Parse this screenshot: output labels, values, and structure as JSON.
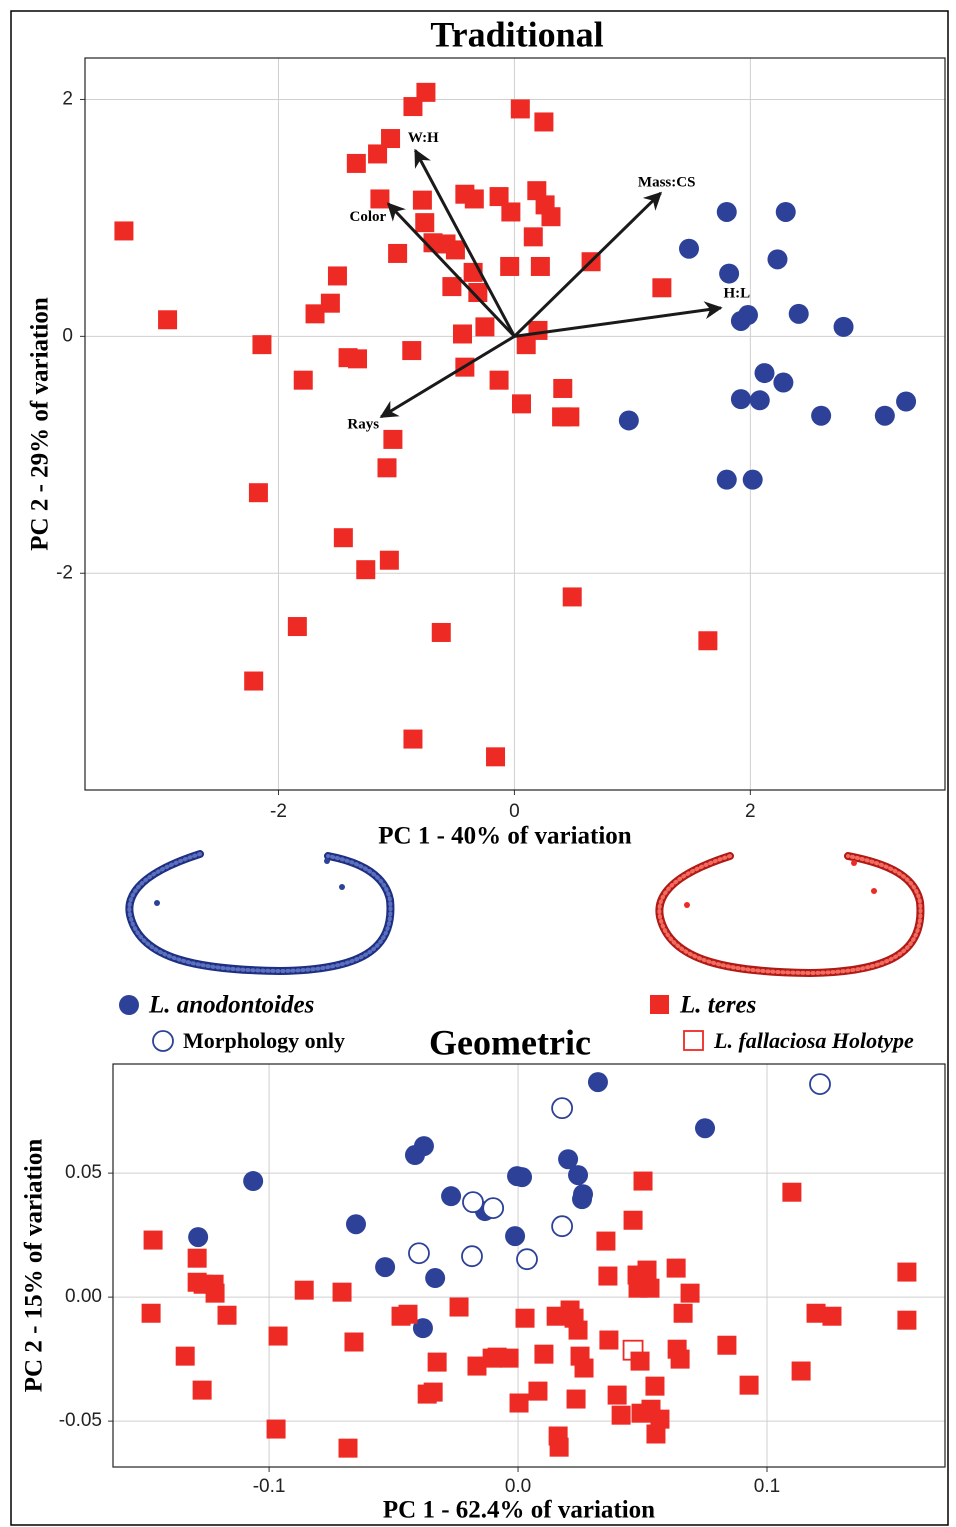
{
  "chart_data": [
    {
      "type": "scatter",
      "title": "Traditional",
      "x_label": "PC 1 - 40% of variation",
      "y_label": "PC 2 - 29% of variation",
      "xlim": [
        -3.64,
        3.65
      ],
      "ylim": [
        -3.83,
        2.35
      ],
      "xticks": [
        -2,
        0,
        2
      ],
      "yticks": [
        -2,
        0,
        2
      ],
      "grid": true,
      "series": [
        {
          "color": "#2d4199",
          "marker": "circle",
          "filled": true,
          "x": [
            0.97,
            1.48,
            1.8,
            1.82,
            1.92,
            1.98,
            1.8,
            2.02,
            1.92,
            2.08,
            2.12,
            2.23,
            2.28,
            2.3,
            2.41,
            2.6,
            2.79,
            3.14,
            3.32
          ],
          "y": [
            -0.71,
            0.74,
            1.05,
            0.53,
            0.13,
            0.18,
            -1.21,
            -1.21,
            -0.53,
            -0.54,
            -0.31,
            0.65,
            -0.39,
            1.05,
            0.19,
            -0.67,
            0.08,
            -0.67,
            -0.55
          ]
        },
        {
          "color": "#ee2a24",
          "marker": "square",
          "filled": true,
          "x": [
            -3.31,
            -2.94,
            -2.14,
            -2.17,
            -2.21,
            -1.84,
            -1.79,
            -1.69,
            -1.56,
            -1.5,
            -1.45,
            -1.41,
            -1.33,
            -1.26,
            -1.06,
            -1.08,
            -1.03,
            -1.34,
            -1.16,
            -1.05,
            -0.86,
            -0.75,
            -1.14,
            -0.99,
            -0.78,
            -0.76,
            -0.69,
            -0.87,
            -0.86,
            -0.62,
            -0.58,
            -0.53,
            -0.5,
            -0.44,
            -0.42,
            -0.42,
            -0.34,
            -0.35,
            -0.31,
            -0.25,
            -0.16,
            -0.13,
            -0.13,
            -0.03,
            -0.04,
            0.05,
            0.1,
            0.06,
            0.16,
            0.19,
            0.22,
            0.25,
            0.26,
            0.31,
            0.2,
            0.41,
            0.4,
            0.47,
            0.49,
            0.65,
            1.25,
            1.64
          ],
          "y": [
            0.89,
            0.14,
            -0.07,
            -1.32,
            -2.91,
            -2.45,
            -0.37,
            0.19,
            0.28,
            0.51,
            -1.7,
            -0.18,
            -0.19,
            -1.97,
            -1.89,
            -1.11,
            -0.87,
            1.46,
            1.54,
            1.67,
            1.94,
            2.06,
            1.16,
            0.7,
            1.15,
            0.96,
            0.79,
            -0.12,
            -3.4,
            -2.5,
            0.78,
            0.42,
            0.73,
            0.02,
            -0.26,
            1.2,
            1.16,
            0.54,
            0.37,
            0.08,
            -3.55,
            -0.37,
            1.18,
            1.05,
            0.59,
            1.92,
            -0.07,
            -0.57,
            0.84,
            1.23,
            0.59,
            1.81,
            1.11,
            1.01,
            0.05,
            -0.44,
            -0.68,
            -0.68,
            -2.2,
            0.63,
            0.41,
            -2.57
          ]
        }
      ],
      "vectors": [
        {
          "label": "W:H",
          "x": -0.84,
          "y": 1.57
        },
        {
          "label": "Color",
          "x": -1.07,
          "y": 1.12
        },
        {
          "label": "Mass:CS",
          "x": 1.24,
          "y": 1.21
        },
        {
          "label": "H:L",
          "x": 1.75,
          "y": 0.24
        },
        {
          "label": "Rays",
          "x": -1.13,
          "y": -0.68
        }
      ]
    },
    {
      "type": "scatter",
      "title": "Geometric",
      "x_label": "PC 1 - 62.4% of variation",
      "y_label": "PC 2 - 15% of variation",
      "xlim": [
        -0.1627,
        0.1715
      ],
      "ylim": [
        -0.0685,
        0.094
      ],
      "xticks": [
        -0.1,
        {
          "value": 0,
          "label": "0.0"
        },
        0.1
      ],
      "yticks": [
        -0.05,
        {
          "value": 0,
          "label": "0.00"
        },
        0.05
      ],
      "grid": true,
      "series": [
        {
          "name": "L. anodontoides",
          "color": "#2d4199",
          "marker": "circle",
          "filled": true,
          "x": [
            0.0321,
            0.0751,
            -0.0378,
            -0.0414,
            -0.1064,
            0.0201,
            -0.0004,
            0.0016,
            0.0241,
            -0.0269,
            0.0261,
            0.0257,
            -0.0133,
            -0.0651,
            -0.1285,
            -0.0012,
            -0.0534,
            -0.0333,
            -0.0382
          ],
          "y": [
            0.0867,
            0.0681,
            0.0609,
            0.0573,
            0.0468,
            0.0556,
            0.0488,
            0.0484,
            0.0492,
            0.0407,
            0.0415,
            0.0395,
            0.0347,
            0.0294,
            0.0242,
            0.0246,
            0.0121,
            0.0077,
            -0.0125
          ]
        },
        {
          "name": "Morphology only",
          "color": "#2d4199",
          "marker": "circle",
          "filled": false,
          "x": [
            0.1213,
            0.0177,
            -0.0181,
            -0.01,
            0.0177,
            -0.0398,
            -0.0185,
            0.0036
          ],
          "y": [
            0.0859,
            0.0762,
            0.0383,
            0.0359,
            0.0286,
            0.0177,
            0.0165,
            0.0153
          ]
        },
        {
          "name": "L. teres",
          "color": "#ee2a24",
          "marker": "square",
          "filled": true,
          "x": [
            -0.1466,
            -0.1474,
            -0.1289,
            -0.1289,
            -0.1265,
            -0.1221,
            -0.1217,
            -0.1169,
            -0.1337,
            -0.1269,
            -0.0964,
            -0.0972,
            -0.0859,
            -0.0707,
            -0.0659,
            -0.0683,
            -0.047,
            -0.0442,
            -0.0325,
            -0.0365,
            -0.0341,
            -0.0237,
            -0.0165,
            -0.0104,
            -0.0084,
            -0.0036,
            0.0004,
            0.0028,
            0.008,
            0.0104,
            0.0153,
            0.0209,
            0.0225,
            0.0161,
            0.0165,
            0.0233,
            0.0241,
            0.0249,
            0.0265,
            0.0365,
            0.0353,
            0.0361,
            0.0398,
            0.0414,
            0.0462,
            0.0478,
            0.0482,
            0.0502,
            0.0518,
            0.053,
            0.049,
            0.0494,
            0.0534,
            0.055,
            0.0554,
            0.057,
            0.0663,
            0.0639,
            0.0651,
            0.0635,
            0.0691,
            0.0839,
            0.0928,
            0.11,
            0.1137,
            0.1197,
            0.1261,
            0.1562,
            0.1562
          ],
          "y": [
            0.023,
            -0.0065,
            0.0157,
            0.006,
            0.0052,
            0.0052,
            0.0016,
            -0.0073,
            -0.0238,
            -0.0375,
            -0.0157,
            -0.0532,
            0.0028,
            0.002,
            -0.0181,
            -0.0609,
            -0.0077,
            -0.0069,
            -0.0262,
            -0.0391,
            -0.0383,
            -0.004,
            -0.0278,
            -0.0246,
            -0.0242,
            -0.0246,
            -0.0427,
            -0.0085,
            -0.0379,
            -0.023,
            -0.0077,
            -0.0052,
            -0.0085,
            -0.056,
            -0.0605,
            -0.0411,
            -0.0133,
            -0.0238,
            -0.0286,
            -0.0173,
            0.0226,
            0.0085,
            -0.0395,
            -0.0476,
            0.031,
            0.0089,
            0.0036,
            0.0468,
            0.0109,
            0.0036,
            -0.0258,
            -0.0468,
            -0.0452,
            -0.0359,
            -0.0552,
            -0.0492,
            -0.0065,
            -0.021,
            -0.025,
            0.0117,
            0.0016,
            -0.0194,
            -0.0355,
            0.0423,
            -0.0298,
            -0.0065,
            -0.0077,
            0.0101,
            -0.0093
          ]
        },
        {
          "name": "L. fallaciosa Holotype",
          "color": "#ee2a24",
          "marker": "square",
          "filled": false,
          "x": [
            0.0462
          ],
          "y": [
            -0.0214
          ]
        }
      ]
    }
  ]
}
